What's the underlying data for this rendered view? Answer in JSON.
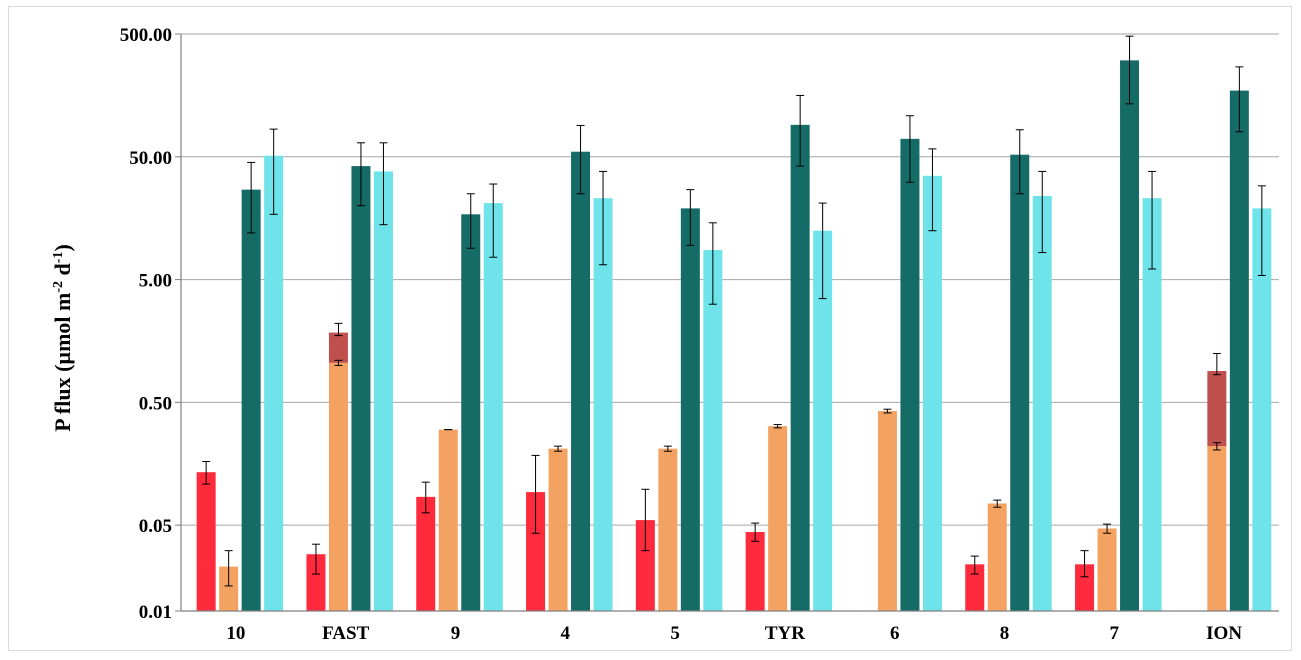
{
  "chart_data": {
    "type": "bar",
    "ylabel": "P flux (µmol m-2 d-1)",
    "ylabel_parts": {
      "main": "P flux (µmol m",
      "sup1": "-2",
      "mid": " d",
      "sup2": "-1",
      "end": ")"
    },
    "yscale": "log",
    "ylim": [
      0.01,
      500
    ],
    "yticks": [
      0.01,
      0.05,
      0.5,
      5.0,
      50.0,
      500.0
    ],
    "ytick_labels": [
      "0.01",
      "0.05",
      "0.50",
      "5.00",
      "50.00",
      "500.00"
    ],
    "grid": true,
    "categories": [
      "10",
      "FAST",
      "9",
      "4",
      "5",
      "TYR",
      "6",
      "8",
      "7",
      "ION"
    ],
    "series": [
      {
        "color": "#ff2b3d",
        "values": [
          0.135,
          0.029,
          0.085,
          0.093,
          0.055,
          0.044,
          null,
          0.024,
          0.024,
          null
        ],
        "err_low": [
          0.108,
          0.02,
          0.063,
          0.043,
          0.031,
          0.037,
          null,
          0.02,
          0.019,
          null
        ],
        "err_high": [
          0.165,
          0.035,
          0.112,
          0.185,
          0.098,
          0.052,
          null,
          0.028,
          0.031,
          null
        ]
      },
      {
        "color": "#f4a261",
        "values": [
          0.023,
          1.05,
          0.3,
          0.21,
          0.21,
          0.32,
          0.425,
          0.075,
          0.047,
          0.22
        ],
        "err_low": [
          0.016,
          1.0,
          0.3,
          0.2,
          0.2,
          0.31,
          0.41,
          0.07,
          0.043,
          0.205
        ],
        "err_high": [
          0.031,
          1.1,
          0.3,
          0.22,
          0.22,
          0.33,
          0.44,
          0.08,
          0.051,
          0.235
        ],
        "stack": {
          "color": "#c0504d",
          "values": [
            null,
            1.85,
            null,
            null,
            null,
            null,
            null,
            null,
            null,
            0.9
          ],
          "err_low": [
            null,
            1.75,
            null,
            null,
            null,
            null,
            null,
            null,
            null,
            0.84
          ],
          "err_high": [
            null,
            2.2,
            null,
            null,
            null,
            null,
            null,
            null,
            null,
            1.25
          ]
        }
      },
      {
        "color": "#156b66",
        "values": [
          27,
          42,
          17,
          55,
          19,
          91,
          70,
          52,
          305,
          173
        ],
        "err_low": [
          12,
          20,
          9,
          25,
          9.5,
          42,
          31,
          25,
          135,
          80
        ],
        "err_high": [
          45,
          65,
          25,
          90,
          27,
          158,
          108,
          83,
          480,
          270
        ]
      },
      {
        "color": "#6fe3ea",
        "values": [
          51,
          38,
          21,
          23,
          8.7,
          12.5,
          35,
          24,
          23,
          19
        ],
        "err_low": [
          17,
          14,
          7.6,
          6.6,
          3.15,
          3.5,
          12.5,
          8.3,
          6.1,
          5.4
        ],
        "err_high": [
          84,
          65,
          30,
          38,
          14.5,
          21,
          58,
          38,
          38,
          29
        ]
      }
    ]
  }
}
